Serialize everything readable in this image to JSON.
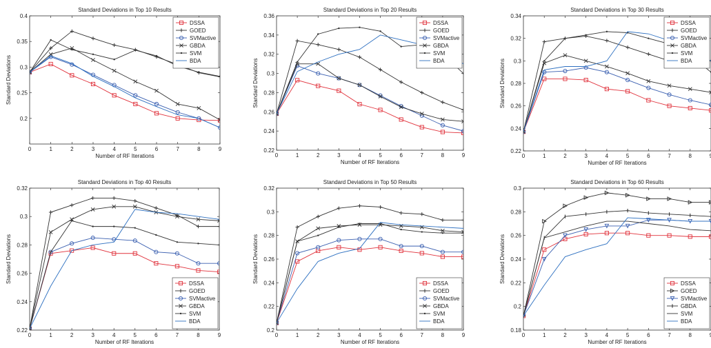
{
  "chart_data": [
    {
      "type": "line",
      "title": "Standard Deviations in Top 10 Results",
      "xlabel": "Number of RF Iterations",
      "ylabel": "Standard Deviations",
      "xlim": [
        0,
        9
      ],
      "ylim": [
        0.15,
        0.4
      ],
      "xticks": [
        "0",
        "1",
        "2",
        "3",
        "4",
        "5",
        "6",
        "7",
        "8",
        "9"
      ],
      "yticks": [
        "0.2",
        "0.25",
        "0.3",
        "0.35",
        "0.4"
      ],
      "ytick_values": [
        0.2,
        0.25,
        0.3,
        0.35,
        0.4
      ],
      "legend_position": "top-right",
      "x": [
        0,
        1,
        2,
        3,
        4,
        5,
        6,
        7,
        8,
        9
      ],
      "series": [
        {
          "name": "DSSA",
          "color": "#e0303a",
          "marker": "s",
          "values": [
            0.29,
            0.306,
            0.284,
            0.267,
            0.245,
            0.228,
            0.21,
            0.2,
            0.197,
            0.196
          ]
        },
        {
          "name": "GOED",
          "color": "#333333",
          "marker": "+",
          "values": [
            0.29,
            0.337,
            0.37,
            0.356,
            0.343,
            0.334,
            0.32,
            0.305,
            0.289,
            0.281
          ]
        },
        {
          "name": "SVMactive",
          "color": "#3a5fb0",
          "marker": "o",
          "values": [
            0.29,
            0.32,
            0.305,
            0.285,
            0.265,
            0.245,
            0.228,
            0.212,
            0.2,
            0.182
          ]
        },
        {
          "name": "GBDA",
          "color": "#333333",
          "marker": "x",
          "values": [
            0.29,
            0.325,
            0.337,
            0.314,
            0.293,
            0.272,
            0.254,
            0.228,
            0.22,
            0.197
          ]
        },
        {
          "name": "SVM",
          "color": "#333333",
          "marker": ".",
          "values": [
            0.29,
            0.353,
            0.334,
            0.325,
            0.315,
            0.333,
            0.322,
            0.302,
            0.29,
            0.282
          ]
        },
        {
          "name": "BDA",
          "color": "#2c6fc0",
          "marker": "",
          "values": [
            0.29,
            0.322,
            0.307,
            0.282,
            0.262,
            0.24,
            0.223,
            0.207,
            0.2,
            0.182
          ]
        }
      ]
    },
    {
      "type": "line",
      "title": "Standard Deviations in Top 20 Results",
      "xlabel": "Number of RF Iterations",
      "ylabel": "Standard Deviations",
      "xlim": [
        0,
        9
      ],
      "ylim": [
        0.22,
        0.36
      ],
      "xticks": [
        "0",
        "1",
        "2",
        "3",
        "4",
        "5",
        "6",
        "7",
        "8",
        "9"
      ],
      "yticks": [
        "0.22",
        "0.24",
        "0.26",
        "0.28",
        "0.3",
        "0.32",
        "0.34",
        "0.36"
      ],
      "ytick_values": [
        0.22,
        0.24,
        0.26,
        0.28,
        0.3,
        0.32,
        0.34,
        0.36
      ],
      "legend_position": "top-right",
      "x": [
        0,
        1,
        2,
        3,
        4,
        5,
        6,
        7,
        8,
        9
      ],
      "series": [
        {
          "name": "DSSA",
          "color": "#e0303a",
          "marker": "s",
          "values": [
            0.258,
            0.293,
            0.287,
            0.282,
            0.268,
            0.262,
            0.252,
            0.244,
            0.239,
            0.238
          ]
        },
        {
          "name": "GOED",
          "color": "#333333",
          "marker": "+",
          "values": [
            0.258,
            0.334,
            0.33,
            0.325,
            0.317,
            0.304,
            0.291,
            0.28,
            0.27,
            0.262
          ]
        },
        {
          "name": "SVMactive",
          "color": "#3a5fb0",
          "marker": "o",
          "values": [
            0.258,
            0.308,
            0.3,
            0.295,
            0.288,
            0.277,
            0.266,
            0.256,
            0.246,
            0.24
          ]
        },
        {
          "name": "GBDA",
          "color": "#333333",
          "marker": "x",
          "values": [
            0.258,
            0.31,
            0.31,
            0.295,
            0.288,
            0.276,
            0.265,
            0.258,
            0.252,
            0.25
          ]
        },
        {
          "name": "SVM",
          "color": "#333333",
          "marker": ".",
          "values": [
            0.258,
            0.312,
            0.341,
            0.347,
            0.348,
            0.344,
            0.328,
            0.33,
            0.32,
            0.3
          ]
        },
        {
          "name": "BDA",
          "color": "#2c6fc0",
          "marker": "",
          "values": [
            0.258,
            0.302,
            0.312,
            0.32,
            0.325,
            0.34,
            0.335,
            0.33,
            0.322,
            0.31
          ]
        }
      ]
    },
    {
      "type": "line",
      "title": "Standard Deviations in Top 30 Results",
      "xlabel": "Number of RF Iterations",
      "ylabel": "Standard Deviations",
      "xlim": [
        0,
        9
      ],
      "ylim": [
        0.22,
        0.34
      ],
      "xticks": [
        "0",
        "1",
        "2",
        "3",
        "4",
        "5",
        "6",
        "7",
        "8",
        "9"
      ],
      "yticks": [
        "0.22",
        "0.24",
        "0.26",
        "0.28",
        "0.3",
        "0.32",
        "0.34"
      ],
      "ytick_values": [
        0.22,
        0.24,
        0.26,
        0.28,
        0.3,
        0.32,
        0.34
      ],
      "legend_position": "top-right",
      "x": [
        0,
        1,
        2,
        3,
        4,
        5,
        6,
        7,
        8,
        9
      ],
      "series": [
        {
          "name": "DSSA",
          "color": "#e0303a",
          "marker": "s",
          "values": [
            0.237,
            0.284,
            0.284,
            0.283,
            0.275,
            0.273,
            0.265,
            0.26,
            0.258,
            0.256
          ]
        },
        {
          "name": "GOED",
          "color": "#333333",
          "marker": "+",
          "values": [
            0.237,
            0.317,
            0.32,
            0.322,
            0.318,
            0.312,
            0.306,
            0.3,
            0.3,
            0.3
          ]
        },
        {
          "name": "SVMactive",
          "color": "#3a5fb0",
          "marker": "o",
          "values": [
            0.237,
            0.29,
            0.291,
            0.294,
            0.29,
            0.283,
            0.276,
            0.27,
            0.265,
            0.261
          ]
        },
        {
          "name": "GBDA",
          "color": "#333333",
          "marker": "x",
          "values": [
            0.237,
            0.298,
            0.305,
            0.3,
            0.295,
            0.289,
            0.282,
            0.278,
            0.275,
            0.272
          ]
        },
        {
          "name": "SVM",
          "color": "#333333",
          "marker": ".",
          "values": [
            0.237,
            0.3,
            0.32,
            0.323,
            0.326,
            0.325,
            0.32,
            0.315,
            0.305,
            0.29
          ]
        },
        {
          "name": "BDA",
          "color": "#2c6fc0",
          "marker": "",
          "values": [
            0.237,
            0.292,
            0.295,
            0.295,
            0.3,
            0.326,
            0.324,
            0.318,
            0.31,
            0.3
          ]
        }
      ]
    },
    {
      "type": "line",
      "title": "Standard Deviations in Top 40 Results",
      "xlabel": "Number of RF Iterations",
      "ylabel": "Standard Deviations",
      "xlim": [
        0,
        9
      ],
      "ylim": [
        0.22,
        0.32
      ],
      "xticks": [
        "0",
        "1",
        "2",
        "3",
        "4",
        "5",
        "6",
        "7",
        "8",
        "9"
      ],
      "yticks": [
        "0.22",
        "0.24",
        "0.26",
        "0.28",
        "0.3",
        "0.32"
      ],
      "ytick_values": [
        0.22,
        0.24,
        0.26,
        0.28,
        0.3,
        0.32
      ],
      "legend_position": "bottom-right",
      "x": [
        0,
        1,
        2,
        3,
        4,
        5,
        6,
        7,
        8,
        9
      ],
      "series": [
        {
          "name": "DSSA",
          "color": "#e0303a",
          "marker": "s",
          "values": [
            0.221,
            0.274,
            0.276,
            0.278,
            0.274,
            0.274,
            0.267,
            0.265,
            0.262,
            0.261
          ]
        },
        {
          "name": "GOED",
          "color": "#333333",
          "marker": "+",
          "values": [
            0.221,
            0.303,
            0.308,
            0.313,
            0.313,
            0.311,
            0.306,
            0.301,
            0.293,
            0.293
          ]
        },
        {
          "name": "SVMactive",
          "color": "#3a5fb0",
          "marker": "o",
          "values": [
            0.221,
            0.275,
            0.281,
            0.285,
            0.284,
            0.283,
            0.275,
            0.274,
            0.267,
            0.267
          ]
        },
        {
          "name": "GBDA",
          "color": "#333333",
          "marker": "x",
          "values": [
            0.221,
            0.289,
            0.298,
            0.305,
            0.307,
            0.307,
            0.303,
            0.3,
            0.298,
            0.297
          ]
        },
        {
          "name": "SVM",
          "color": "#333333",
          "marker": ".",
          "values": [
            0.221,
            0.275,
            0.297,
            0.293,
            0.293,
            0.292,
            0.287,
            0.282,
            0.281,
            0.28
          ]
        },
        {
          "name": "BDA",
          "color": "#2c6fc0",
          "marker": "",
          "values": [
            0.221,
            0.251,
            0.276,
            0.28,
            0.282,
            0.305,
            0.303,
            0.302,
            0.3,
            0.298
          ]
        }
      ]
    },
    {
      "type": "line",
      "title": "Standard Deviations in Top 50 Results",
      "xlabel": "Number of RF Iterations",
      "ylabel": "Standard Deviations",
      "xlim": [
        0,
        9
      ],
      "ylim": [
        0.2,
        0.32
      ],
      "xticks": [
        "0",
        "1",
        "2",
        "3",
        "4",
        "5",
        "6",
        "7",
        "8",
        "9"
      ],
      "yticks": [
        "0.2",
        "0.22",
        "0.24",
        "0.26",
        "0.28",
        "0.3",
        "0.32"
      ],
      "ytick_values": [
        0.2,
        0.22,
        0.24,
        0.26,
        0.28,
        0.3,
        0.32
      ],
      "legend_position": "bottom-right",
      "x": [
        0,
        1,
        2,
        3,
        4,
        5,
        6,
        7,
        8,
        9
      ],
      "series": [
        {
          "name": "DSSA",
          "color": "#e0303a",
          "marker": "s",
          "values": [
            0.206,
            0.258,
            0.267,
            0.27,
            0.268,
            0.27,
            0.267,
            0.265,
            0.262,
            0.262
          ]
        },
        {
          "name": "GOED",
          "color": "#333333",
          "marker": "+",
          "values": [
            0.206,
            0.287,
            0.296,
            0.303,
            0.305,
            0.304,
            0.299,
            0.298,
            0.293,
            0.293
          ]
        },
        {
          "name": "SVMactive",
          "color": "#3a5fb0",
          "marker": "o",
          "values": [
            0.206,
            0.265,
            0.27,
            0.276,
            0.277,
            0.277,
            0.271,
            0.271,
            0.266,
            0.266
          ]
        },
        {
          "name": "GBDA",
          "color": "#333333",
          "marker": "x",
          "values": [
            0.206,
            0.275,
            0.286,
            0.288,
            0.289,
            0.289,
            0.288,
            0.287,
            0.284,
            0.283
          ]
        },
        {
          "name": "SVM",
          "color": "#333333",
          "marker": ".",
          "values": [
            0.206,
            0.275,
            0.28,
            0.287,
            0.29,
            0.29,
            0.285,
            0.283,
            0.282,
            0.282
          ]
        },
        {
          "name": "BDA",
          "color": "#2c6fc0",
          "marker": "",
          "values": [
            0.206,
            0.235,
            0.258,
            0.265,
            0.269,
            0.291,
            0.289,
            0.288,
            0.287,
            0.286
          ]
        }
      ]
    },
    {
      "type": "line",
      "title": "Standard Deviations in Top 60 Results",
      "xlabel": "Number of RF Iterations",
      "ylabel": "Standard Deviations",
      "xlim": [
        0,
        9
      ],
      "ylim": [
        0.18,
        0.3
      ],
      "xticks": [
        "0",
        "1",
        "2",
        "3",
        "4",
        "5",
        "6",
        "7",
        "8",
        "9"
      ],
      "yticks": [
        "0.18",
        "0.2",
        "0.22",
        "0.24",
        "0.26",
        "0.28",
        "0.3"
      ],
      "ytick_values": [
        0.18,
        0.2,
        0.22,
        0.24,
        0.26,
        0.28,
        0.3
      ],
      "legend_position": "bottom-right",
      "x": [
        0,
        1,
        2,
        3,
        4,
        5,
        6,
        7,
        8,
        9
      ],
      "series": [
        {
          "name": "DSSA",
          "color": "#e0303a",
          "marker": "s",
          "values": [
            0.192,
            0.248,
            0.257,
            0.261,
            0.262,
            0.262,
            0.26,
            0.26,
            0.259,
            0.259
          ]
        },
        {
          "name": "GOED",
          "color": "#333333",
          "marker": ">",
          "values": [
            0.192,
            0.272,
            0.285,
            0.292,
            0.296,
            0.294,
            0.291,
            0.291,
            0.288,
            0.288
          ]
        },
        {
          "name": "SVMactive",
          "color": "#3a5fb0",
          "marker": "v",
          "values": [
            0.192,
            0.24,
            0.26,
            0.265,
            0.268,
            0.268,
            0.273,
            0.273,
            0.272,
            0.272
          ]
        },
        {
          "name": "GBDA",
          "color": "#333333",
          "marker": "|",
          "values": [
            0.192,
            0.258,
            0.276,
            0.278,
            0.28,
            0.281,
            0.279,
            0.278,
            0.277,
            0.276
          ]
        },
        {
          "name": "SVM",
          "color": "#333333",
          "marker": "",
          "values": [
            0.192,
            0.258,
            0.263,
            0.268,
            0.272,
            0.272,
            0.27,
            0.268,
            0.265,
            0.264
          ]
        },
        {
          "name": "BDA",
          "color": "#2c6fc0",
          "marker": "",
          "values": [
            0.192,
            0.218,
            0.242,
            0.248,
            0.253,
            0.275,
            0.274,
            0.273,
            0.272,
            0.272
          ]
        }
      ]
    }
  ]
}
